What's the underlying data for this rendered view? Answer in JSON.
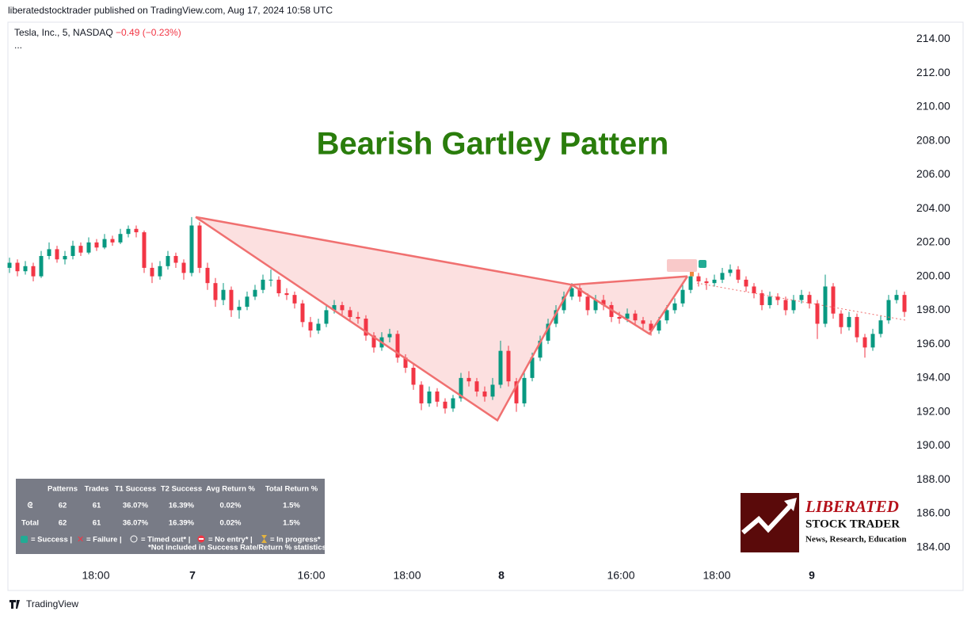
{
  "header": "liberatedstocktrader published on TradingView.com, Aug 17, 2024 10:58 UTC",
  "footer": "TradingView",
  "chart_data": {
    "type": "candlestick",
    "title": "Bearish Gartley Pattern",
    "symbol": "Tesla, Inc., 5, NASDAQ",
    "change": "−0.49 (−0.23%)",
    "menu": "...",
    "up_color": "#089981",
    "down_color": "#f23645",
    "x": [
      0,
      1,
      2,
      3,
      4,
      5,
      6,
      7,
      8,
      9,
      10,
      11,
      12,
      13,
      14,
      15,
      16,
      17,
      18,
      19,
      20,
      21,
      22,
      23,
      24,
      25,
      26,
      27,
      28,
      29,
      30,
      31,
      32,
      33,
      34,
      35,
      36,
      37,
      38,
      39,
      40,
      41,
      42,
      43,
      44,
      45,
      46,
      47,
      48,
      49,
      50,
      51,
      52,
      53,
      54,
      55,
      56,
      57,
      58,
      59,
      60,
      61,
      62,
      63,
      64,
      65,
      66,
      67,
      68,
      69,
      70,
      71,
      72,
      73,
      74,
      75,
      76,
      77,
      78,
      79,
      80,
      81,
      82,
      83,
      84,
      85,
      86,
      87,
      88,
      89,
      90,
      91,
      92,
      93,
      94,
      95,
      96,
      97,
      98,
      99,
      100,
      101,
      102,
      103,
      104,
      105,
      106,
      107,
      108,
      109,
      110,
      111,
      112,
      113
    ],
    "ohlc": [
      [
        200.5,
        201.1,
        200.2,
        200.8
      ],
      [
        200.8,
        201.0,
        200.0,
        200.3
      ],
      [
        200.3,
        200.9,
        200.1,
        200.6
      ],
      [
        200.6,
        200.8,
        199.7,
        200.0
      ],
      [
        200.0,
        201.5,
        199.9,
        201.2
      ],
      [
        201.2,
        202.0,
        201.0,
        201.6
      ],
      [
        201.6,
        201.8,
        200.8,
        201.0
      ],
      [
        201.0,
        201.5,
        200.7,
        201.2
      ],
      [
        201.2,
        202.1,
        201.0,
        201.8
      ],
      [
        201.8,
        202.0,
        201.2,
        201.4
      ],
      [
        201.4,
        202.3,
        201.3,
        202.0
      ],
      [
        202.0,
        202.2,
        201.5,
        201.7
      ],
      [
        201.7,
        202.5,
        201.6,
        202.2
      ],
      [
        202.2,
        202.4,
        201.8,
        202.0
      ],
      [
        202.0,
        202.8,
        201.9,
        202.5
      ],
      [
        202.5,
        203.0,
        202.3,
        202.8
      ],
      [
        202.8,
        203.0,
        202.3,
        202.6
      ],
      [
        202.6,
        202.7,
        200.2,
        200.5
      ],
      [
        200.5,
        200.8,
        199.6,
        200.0
      ],
      [
        200.0,
        200.9,
        199.8,
        200.6
      ],
      [
        200.6,
        201.5,
        200.4,
        201.2
      ],
      [
        201.2,
        201.4,
        200.5,
        200.8
      ],
      [
        200.8,
        201.0,
        199.8,
        200.2
      ],
      [
        200.2,
        203.5,
        200.0,
        203.0
      ],
      [
        203.0,
        203.2,
        200.2,
        200.5
      ],
      [
        200.5,
        200.8,
        199.2,
        199.6
      ],
      [
        199.6,
        199.9,
        198.2,
        198.6
      ],
      [
        198.6,
        199.6,
        198.3,
        199.2
      ],
      [
        199.2,
        199.4,
        197.6,
        198.0
      ],
      [
        198.0,
        198.6,
        197.5,
        198.2
      ],
      [
        198.2,
        199.1,
        198.0,
        198.8
      ],
      [
        198.8,
        199.5,
        198.6,
        199.2
      ],
      [
        199.2,
        200.1,
        199.0,
        199.8
      ],
      [
        199.8,
        200.4,
        199.4,
        199.8
      ],
      [
        199.8,
        200.0,
        198.8,
        199.0
      ],
      [
        199.0,
        199.3,
        198.6,
        198.9
      ],
      [
        198.9,
        199.1,
        198.1,
        198.4
      ],
      [
        198.4,
        198.6,
        197.0,
        197.3
      ],
      [
        197.3,
        197.6,
        196.4,
        196.8
      ],
      [
        196.8,
        197.5,
        196.6,
        197.2
      ],
      [
        197.2,
        198.3,
        197.0,
        198.0
      ],
      [
        198.0,
        198.6,
        197.8,
        198.3
      ],
      [
        198.3,
        198.5,
        197.7,
        198.0
      ],
      [
        198.0,
        198.2,
        197.3,
        197.6
      ],
      [
        197.6,
        197.9,
        197.2,
        197.5
      ],
      [
        197.5,
        197.7,
        196.2,
        196.5
      ],
      [
        196.5,
        196.7,
        195.5,
        195.8
      ],
      [
        195.8,
        196.7,
        195.6,
        196.4
      ],
      [
        196.4,
        196.9,
        196.1,
        196.6
      ],
      [
        196.6,
        196.8,
        194.9,
        195.2
      ],
      [
        195.2,
        195.4,
        194.3,
        194.6
      ],
      [
        194.6,
        194.8,
        193.3,
        193.6
      ],
      [
        193.6,
        193.8,
        192.1,
        192.5
      ],
      [
        192.5,
        193.5,
        192.3,
        193.2
      ],
      [
        193.2,
        193.4,
        192.3,
        192.6
      ],
      [
        192.6,
        192.8,
        191.9,
        192.2
      ],
      [
        192.2,
        193.0,
        192.0,
        192.8
      ],
      [
        192.8,
        194.3,
        192.6,
        194.0
      ],
      [
        194.0,
        194.4,
        193.5,
        193.8
      ],
      [
        193.8,
        194.0,
        192.9,
        193.2
      ],
      [
        193.2,
        193.5,
        192.6,
        192.9
      ],
      [
        192.9,
        194.0,
        192.7,
        193.6
      ],
      [
        193.6,
        196.2,
        193.4,
        195.6
      ],
      [
        195.6,
        195.9,
        193.5,
        193.8
      ],
      [
        193.8,
        194.0,
        192.0,
        192.5
      ],
      [
        192.5,
        194.3,
        192.3,
        194.0
      ],
      [
        194.0,
        195.5,
        193.8,
        195.2
      ],
      [
        195.2,
        196.5,
        195.0,
        196.2
      ],
      [
        196.2,
        197.5,
        196.0,
        197.2
      ],
      [
        197.2,
        198.3,
        197.0,
        198.0
      ],
      [
        198.0,
        199.1,
        197.8,
        198.8
      ],
      [
        198.8,
        199.6,
        198.6,
        199.3
      ],
      [
        199.3,
        199.5,
        198.5,
        198.8
      ],
      [
        198.8,
        199.0,
        197.7,
        198.0
      ],
      [
        198.0,
        198.9,
        197.8,
        198.6
      ],
      [
        198.6,
        198.9,
        198.0,
        198.3
      ],
      [
        198.3,
        198.5,
        197.3,
        197.6
      ],
      [
        197.6,
        197.9,
        197.2,
        197.5
      ],
      [
        197.5,
        198.1,
        197.3,
        197.8
      ],
      [
        197.8,
        198.0,
        197.1,
        197.4
      ],
      [
        197.4,
        197.6,
        196.9,
        197.2
      ],
      [
        197.2,
        197.4,
        196.5,
        196.8
      ],
      [
        196.8,
        197.6,
        196.6,
        197.4
      ],
      [
        197.4,
        198.3,
        197.2,
        198.0
      ],
      [
        198.0,
        198.7,
        197.8,
        198.4
      ],
      [
        198.4,
        199.5,
        198.2,
        199.2
      ],
      [
        199.2,
        200.3,
        199.0,
        200.0
      ],
      [
        200.0,
        200.2,
        199.4,
        199.7
      ],
      [
        199.7,
        199.9,
        199.2,
        199.6
      ],
      [
        199.6,
        200.1,
        199.4,
        199.8
      ],
      [
        199.8,
        200.5,
        199.6,
        200.2
      ],
      [
        200.2,
        200.7,
        200.0,
        200.4
      ],
      [
        200.4,
        200.6,
        199.6,
        199.8
      ],
      [
        199.8,
        200.0,
        199.1,
        199.4
      ],
      [
        199.4,
        199.6,
        198.7,
        199.0
      ],
      [
        199.0,
        199.2,
        198.0,
        198.3
      ],
      [
        198.3,
        199.1,
        198.1,
        198.8
      ],
      [
        198.8,
        199.0,
        198.3,
        198.6
      ],
      [
        198.6,
        198.8,
        197.7,
        198.0
      ],
      [
        198.0,
        198.9,
        197.8,
        198.6
      ],
      [
        198.6,
        199.2,
        198.4,
        198.9
      ],
      [
        198.9,
        199.1,
        198.1,
        198.4
      ],
      [
        198.4,
        198.6,
        196.3,
        197.2
      ],
      [
        197.2,
        200.1,
        197.0,
        199.4
      ],
      [
        199.4,
        199.6,
        197.5,
        197.8
      ],
      [
        197.8,
        198.0,
        196.6,
        197.0
      ],
      [
        197.0,
        197.9,
        196.8,
        197.6
      ],
      [
        197.6,
        197.8,
        196.1,
        196.4
      ],
      [
        196.4,
        196.6,
        195.2,
        195.8
      ],
      [
        195.8,
        196.9,
        195.6,
        196.6
      ],
      [
        196.6,
        197.7,
        196.4,
        197.4
      ],
      [
        197.4,
        198.9,
        197.2,
        198.6
      ],
      [
        198.6,
        199.2,
        198.4,
        198.9
      ],
      [
        198.9,
        199.1,
        197.6,
        197.9
      ]
    ],
    "xlim": [
      -0.2,
      113.3
    ],
    "xticks": [
      {
        "value": 10.9,
        "label": "18:00"
      },
      {
        "value": 23.1,
        "label": "7"
      },
      {
        "value": 38.1,
        "label": "16:00"
      },
      {
        "value": 50.2,
        "label": "18:00"
      },
      {
        "value": 62.1,
        "label": "8"
      },
      {
        "value": 77.2,
        "label": "16:00"
      },
      {
        "value": 89.3,
        "label": "18:00"
      },
      {
        "value": 101.3,
        "label": "9"
      }
    ],
    "ylim": [
      183,
      215
    ],
    "yticks": [
      {
        "value": 184,
        "label": "184.00"
      },
      {
        "value": 186,
        "label": "186.00"
      },
      {
        "value": 188,
        "label": "188.00"
      },
      {
        "value": 190,
        "label": "190.00"
      },
      {
        "value": 192,
        "label": "192.00"
      },
      {
        "value": 194,
        "label": "194.00"
      },
      {
        "value": 196,
        "label": "196.00"
      },
      {
        "value": 198,
        "label": "198.00"
      },
      {
        "value": 200,
        "label": "200.00"
      },
      {
        "value": 202,
        "label": "202.00"
      },
      {
        "value": 204,
        "label": "204.00"
      },
      {
        "value": 206,
        "label": "206.00"
      },
      {
        "value": 208,
        "label": "208.00"
      },
      {
        "value": 210,
        "label": "210.00"
      },
      {
        "value": 212,
        "label": "212.00"
      },
      {
        "value": 214,
        "label": "214.00"
      }
    ],
    "pattern": {
      "color": "#f07070",
      "x": [
        23.5,
        61.6,
        71.0,
        80.8,
        85.6
      ],
      "y": [
        203.5,
        191.5,
        199.5,
        196.6,
        200.0
      ]
    },
    "trendline": {
      "x": [
        86.8,
        113.3
      ],
      "y": [
        199.6,
        197.4
      ]
    }
  },
  "stats": {
    "columns": [
      "Patterns",
      "Trades",
      "T1 Success",
      "T2 Success",
      "Avg Return %",
      "Total Return %"
    ],
    "rows": [
      [
        "ᘓ",
        62,
        61,
        "36.07%",
        "16.39%",
        "0.02%",
        "1.5%"
      ],
      [
        "Total",
        62,
        61,
        "36.07%",
        "16.39%",
        "0.02%",
        "1.5%"
      ]
    ],
    "legend": [
      "= Success |",
      "= Failure |",
      "= Timed out* |",
      "= No entry* |",
      "= In progress*"
    ],
    "note": "*Not included in Success Rate/Return % statistics"
  },
  "logo": {
    "name": "LIBERATED",
    "sub": "STOCK TRADER",
    "tagline": "News, Research, Education"
  }
}
